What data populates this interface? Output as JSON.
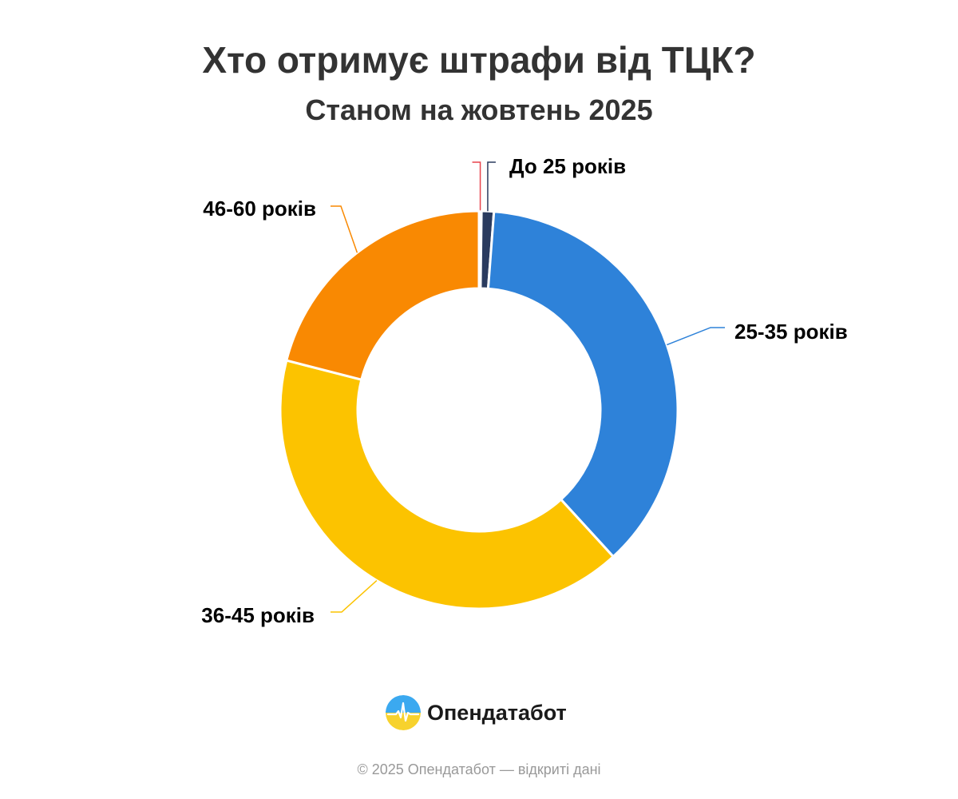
{
  "page": {
    "title": "Хто отримує штрафи від ТЦК?",
    "subtitle": "Станом на жовтень 2025"
  },
  "chart_data": {
    "type": "pie",
    "variant": "donut",
    "title": "Хто отримує штрафи від ТЦК?",
    "subtitle": "Станом на жовтень 2025",
    "start": "top, clockwise",
    "slices": [
      {
        "label": "До 25 років",
        "value": 0.2,
        "color": "#e8434c",
        "show_label": false
      },
      {
        "label": "До 25 років",
        "value": 1.0,
        "color": "#2a3b5f",
        "show_label": true
      },
      {
        "label": "25-35 років",
        "value": 37.0,
        "color": "#2e82d9",
        "show_label": true
      },
      {
        "label": "36-45 років",
        "value": 40.8,
        "color": "#fcc300",
        "show_label": true
      },
      {
        "label": "46-60 років",
        "value": 21.0,
        "color": "#f98902",
        "show_label": true
      }
    ],
    "legend": "none",
    "data_labels": "outside with leader lines"
  },
  "brand": {
    "name": "Опендатабот",
    "colors": {
      "top": "#3ba9f0",
      "bottom": "#f7d22d"
    }
  },
  "footer": {
    "text": "© 2025 Опендатабот — відкриті дані"
  }
}
